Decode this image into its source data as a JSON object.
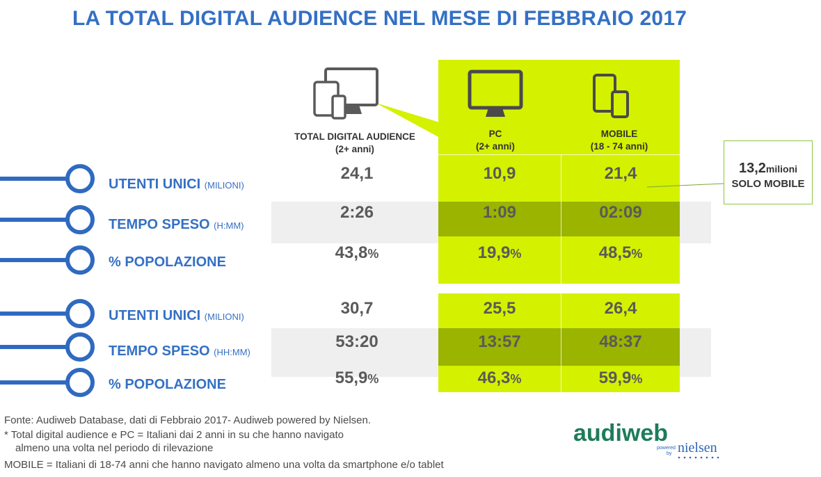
{
  "title": "LA TOTAL DIGITAL AUDIENCE NEL MESE DI FEBBRAIO 2017",
  "columns": {
    "total": {
      "line1": "TOTAL DIGITAL AUDIENCE",
      "line2": "(2+ anni)"
    },
    "pc": {
      "line1": "PC",
      "line2": "(2+ anni)"
    },
    "mobile": {
      "line1": "MOBILE",
      "line2": "(18 - 74 anni)"
    }
  },
  "section1": {
    "rows": [
      {
        "label": "UTENTI UNICI",
        "unit": "(MILIONI)",
        "total": "24,1",
        "pc": "10,9",
        "mobile": "21,4"
      },
      {
        "label": "TEMPO SPESO",
        "unit": "(H:MM)",
        "total": "2:26",
        "pc": "1:09",
        "mobile": "02:09"
      },
      {
        "label": "% POPOLAZIONE",
        "unit": "",
        "total": "43,8",
        "pc": "19,9",
        "mobile": "48,5"
      }
    ]
  },
  "section2": {
    "rows": [
      {
        "label": "UTENTI UNICI",
        "unit": "(MILIONI)",
        "total": "30,7",
        "pc": "25,5",
        "mobile": "26,4"
      },
      {
        "label": "TEMPO SPESO",
        "unit": "(HH:MM)",
        "total": "53:20",
        "pc": "13:57",
        "mobile": "48:37"
      },
      {
        "label": "% POPOLAZIONE",
        "unit": "",
        "total": "55,9",
        "pc": "46,3",
        "mobile": "59,9"
      }
    ]
  },
  "percent_sign": "%",
  "callout": {
    "value": "13,2",
    "unit": "milioni",
    "label": "SOLO MOBILE"
  },
  "footnotes": {
    "source": "Fonte: Audiweb Database, dati di Febbraio 2017- Audiweb powered by Nielsen.",
    "note1_line1": "*  Total digital audience e PC = Italiani dai 2 anni in su che hanno navigato",
    "note1_line2": "almeno una volta nel periodo di rilevazione",
    "note2": "MOBILE = Italiani di 18-74 anni che hanno navigato almeno una volta da smartphone e/o tablet"
  },
  "logo": {
    "brand": "audiweb",
    "powered": "powered",
    "by": "by",
    "partner": "nielsen"
  },
  "colors": {
    "title_blue": "#3470c4",
    "lime": "#d4f100",
    "lime_dark": "#9ab400",
    "grey": "#5a5a5a",
    "logo_green": "#1e7c5a",
    "logo_blue": "#2b66b8"
  },
  "icons": [
    "devices-icon",
    "monitor-icon",
    "mobile-devices-icon"
  ]
}
